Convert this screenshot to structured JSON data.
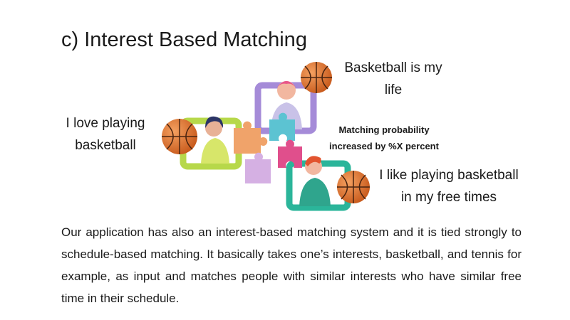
{
  "slide": {
    "title": "c) Interest Based Matching",
    "quotes": {
      "left": "I love playing basketball",
      "top": "Basketball is my life",
      "right": "I like playing basketball in my free times"
    },
    "probability_note": "Matching probability increased by %X percent",
    "body": "Our application has also an interest-based matching system and it is tied strongly to schedule-based matching. It basically takes one’s interests, basketball, and tennis for example, as input and matches people with similar interests who have similar free time in their schedule."
  },
  "illustration": {
    "icons": [
      "basketball-icon",
      "puzzle-piece-icon",
      "person-avatar-icon"
    ],
    "colors": {
      "frame_green": "#b7d84a",
      "frame_purple": "#a58bd8",
      "frame_teal": "#2bb59a",
      "puzzle_orange": "#f0a36a",
      "puzzle_cyan": "#5cc3d2",
      "puzzle_pink": "#e04f8c",
      "puzzle_lilac": "#d5b0e3",
      "ball": "#e8772e"
    }
  }
}
